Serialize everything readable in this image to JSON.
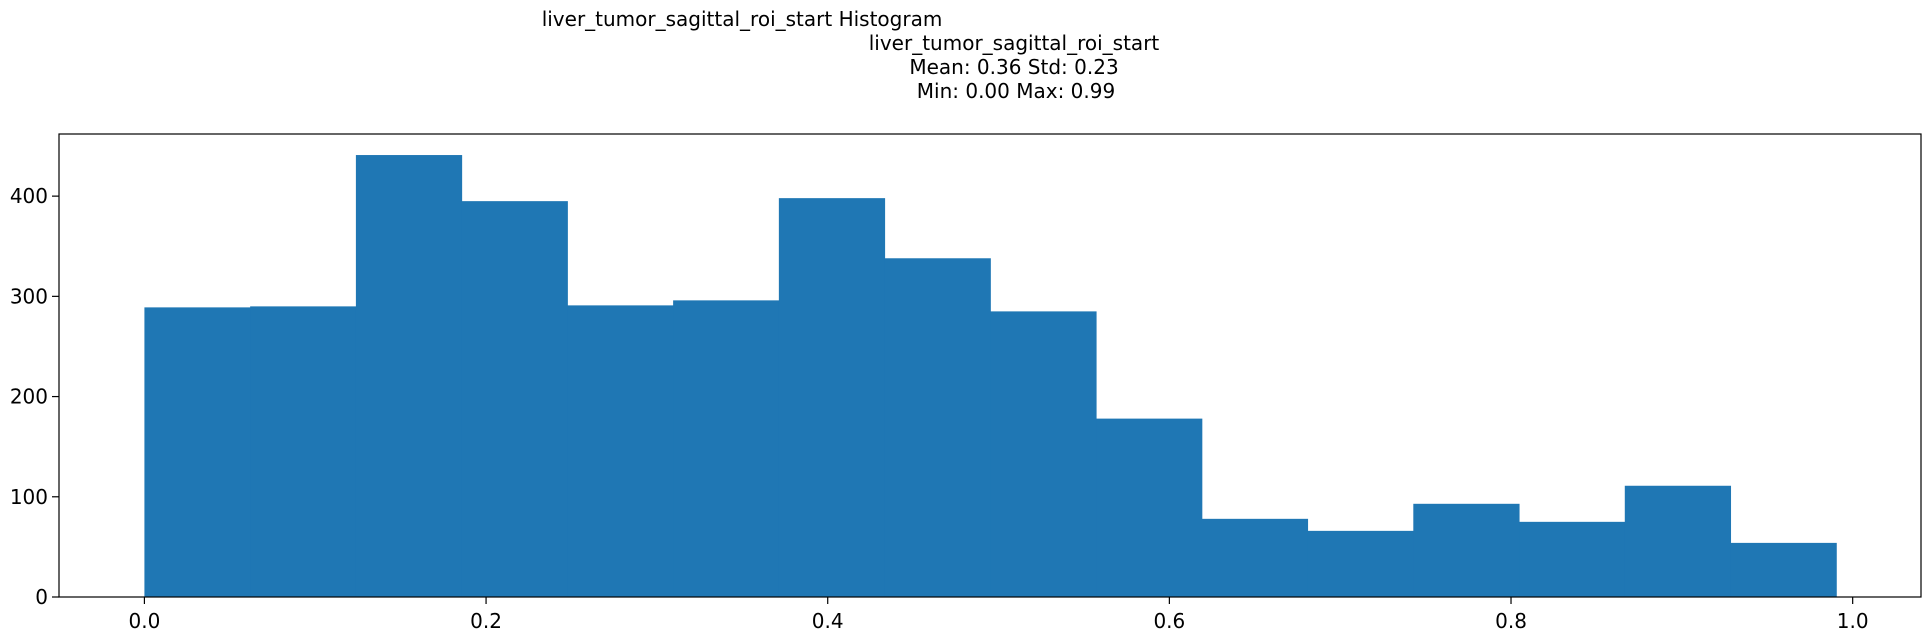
{
  "chart_data": {
    "type": "bar",
    "title_lines": [
      "liver_tumor_sagittal_roi_start Histogram",
      "liver_tumor_sagittal_roi_start",
      "Mean: 0.36 Std: 0.23",
      "Min: 0.00 Max: 0.99"
    ],
    "xlabel": "",
    "ylabel": "",
    "xlim": [
      -0.05,
      1.04
    ],
    "ylim": [
      0,
      462
    ],
    "xticks": [
      0.0,
      0.2,
      0.4,
      0.6,
      0.8,
      1.0
    ],
    "xtick_labels": [
      "0.0",
      "0.2",
      "0.4",
      "0.6",
      "0.8",
      "1.0"
    ],
    "yticks": [
      0,
      100,
      200,
      300,
      400
    ],
    "ytick_labels": [
      "0",
      "100",
      "200",
      "300",
      "400"
    ],
    "bin_edges": [
      0.0,
      0.0619,
      0.1238,
      0.1857,
      0.2476,
      0.3095,
      0.3714,
      0.4333,
      0.4952,
      0.5571,
      0.619,
      0.6809,
      0.7428,
      0.8047,
      0.8666,
      0.9285,
      0.9904
    ],
    "values": [
      289,
      290,
      441,
      395,
      291,
      296,
      398,
      338,
      285,
      178,
      78,
      66,
      93,
      75,
      111,
      54
    ],
    "grid": false,
    "bar_color": "#1f77b4"
  }
}
